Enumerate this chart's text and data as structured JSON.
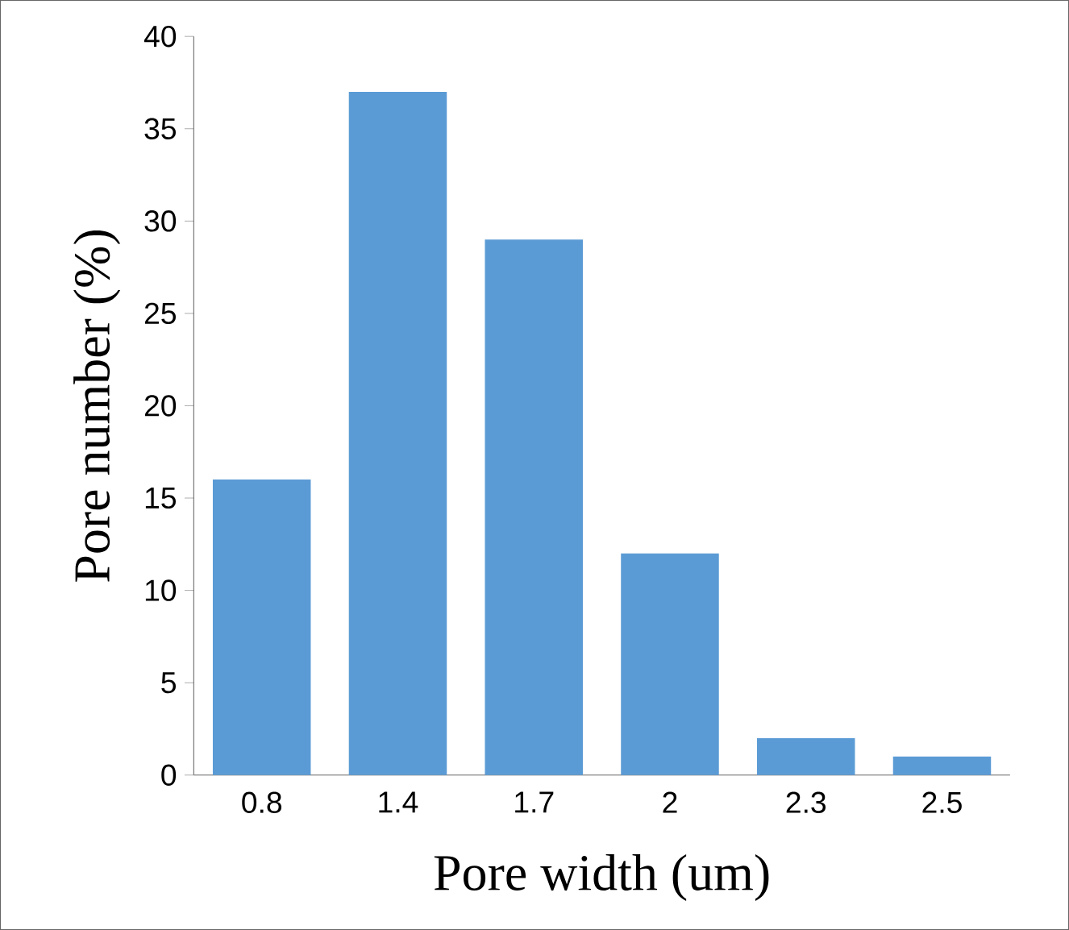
{
  "chart_data": {
    "type": "bar",
    "xlabel": "Pore width (um)",
    "ylabel": "Pore number (%)",
    "categories": [
      "0.8",
      "1.4",
      "1.7",
      "2",
      "2.3",
      "2.5"
    ],
    "values": [
      16,
      37,
      29,
      12,
      2,
      1
    ],
    "color": "#5b9bd5",
    "ylim": [
      0,
      40
    ],
    "yticks": [
      0,
      5,
      10,
      15,
      20,
      25,
      30,
      35,
      40
    ]
  }
}
